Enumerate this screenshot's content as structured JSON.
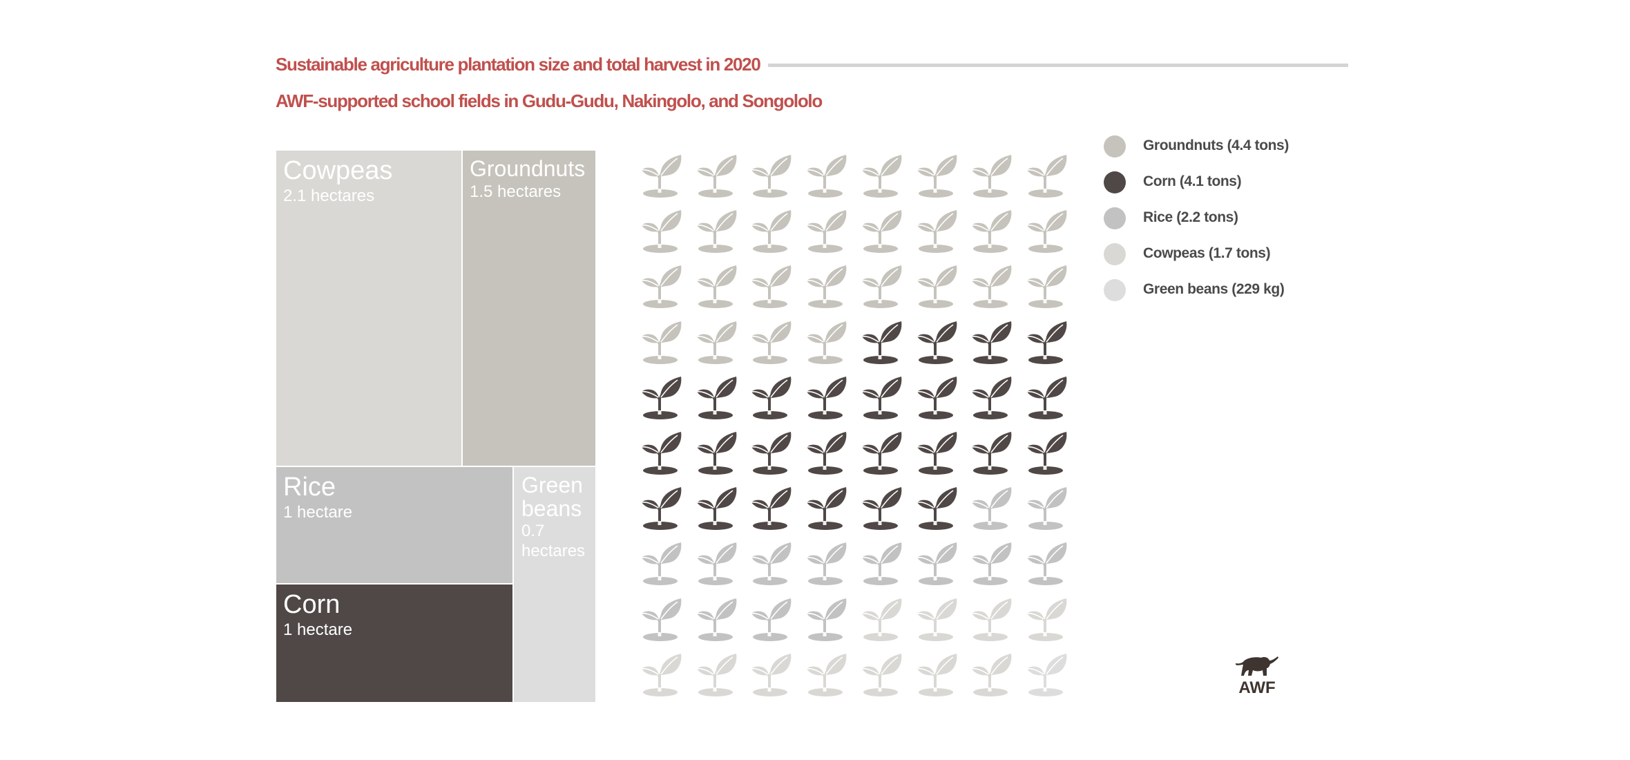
{
  "header": {
    "title": "Sustainable agriculture plantation size and  total harvest in 2020",
    "subtitle": "AWF-supported school fields in Gudu-Gudu, Nakingolo, and Songololo"
  },
  "colors": {
    "title_red": "#C0504D",
    "rule": "#D4D4D4",
    "groundnuts": "#C5C3BB",
    "corn": "#504846",
    "rice": "#C2C2C2",
    "cowpeas": "#D9D8D4",
    "green_beans": "#DDDDDD",
    "legend_text": "#4A4A4A",
    "logo": "#3E3430"
  },
  "treemap": {
    "cells": [
      {
        "key": "cowpeas",
        "name": "Cowpeas",
        "size": "2.1 hectares"
      },
      {
        "key": "groundnuts",
        "name": "Groundnuts",
        "size": "1.5 hectares"
      },
      {
        "key": "rice",
        "name": "Rice",
        "size": "1 hectare"
      },
      {
        "key": "corn",
        "name": "Corn",
        "size": "1 hectare"
      },
      {
        "key": "green_beans",
        "name": "Green beans",
        "size": "0.7 hectares"
      }
    ]
  },
  "legend": {
    "items": [
      {
        "key": "groundnuts",
        "label": "Groundnuts (4.4 tons)"
      },
      {
        "key": "corn",
        "label": "Corn (4.1 tons)"
      },
      {
        "key": "rice",
        "label": "Rice (2.2 tons)"
      },
      {
        "key": "cowpeas",
        "label": "Cowpeas (1.7 tons)"
      },
      {
        "key": "green_beans",
        "label": "Green beans (229 kg)"
      }
    ]
  },
  "logo": {
    "text": "AWF",
    "icon": "elephant-icon"
  },
  "chart_data": [
    {
      "type": "treemap",
      "title": "Plantation size",
      "unit": "hectares",
      "categories": [
        "Cowpeas",
        "Groundnuts",
        "Rice",
        "Corn",
        "Green beans"
      ],
      "values": [
        2.1,
        1.5,
        1,
        1,
        0.7
      ],
      "labels": [
        "2.1 hectares",
        "1.5 hectares",
        "1 hectare",
        "1 hectare",
        "0.7 hectares"
      ]
    },
    {
      "type": "pictogram",
      "title": "Total harvest in 2020",
      "icon": "sprout-icon",
      "grid": {
        "columns": 8,
        "rows": 10,
        "total_icons": 80
      },
      "categories": [
        "Groundnuts",
        "Corn",
        "Rice",
        "Cowpeas",
        "Green beans"
      ],
      "harvest": [
        "4.4 tons",
        "4.1 tons",
        "2.2 tons",
        "1.7 tons",
        "229 kg"
      ],
      "harvest_tons": [
        4.4,
        4.1,
        2.2,
        1.7,
        0.229
      ],
      "icon_counts": [
        28,
        26,
        14,
        11,
        1
      ],
      "legend_position": "right"
    }
  ]
}
